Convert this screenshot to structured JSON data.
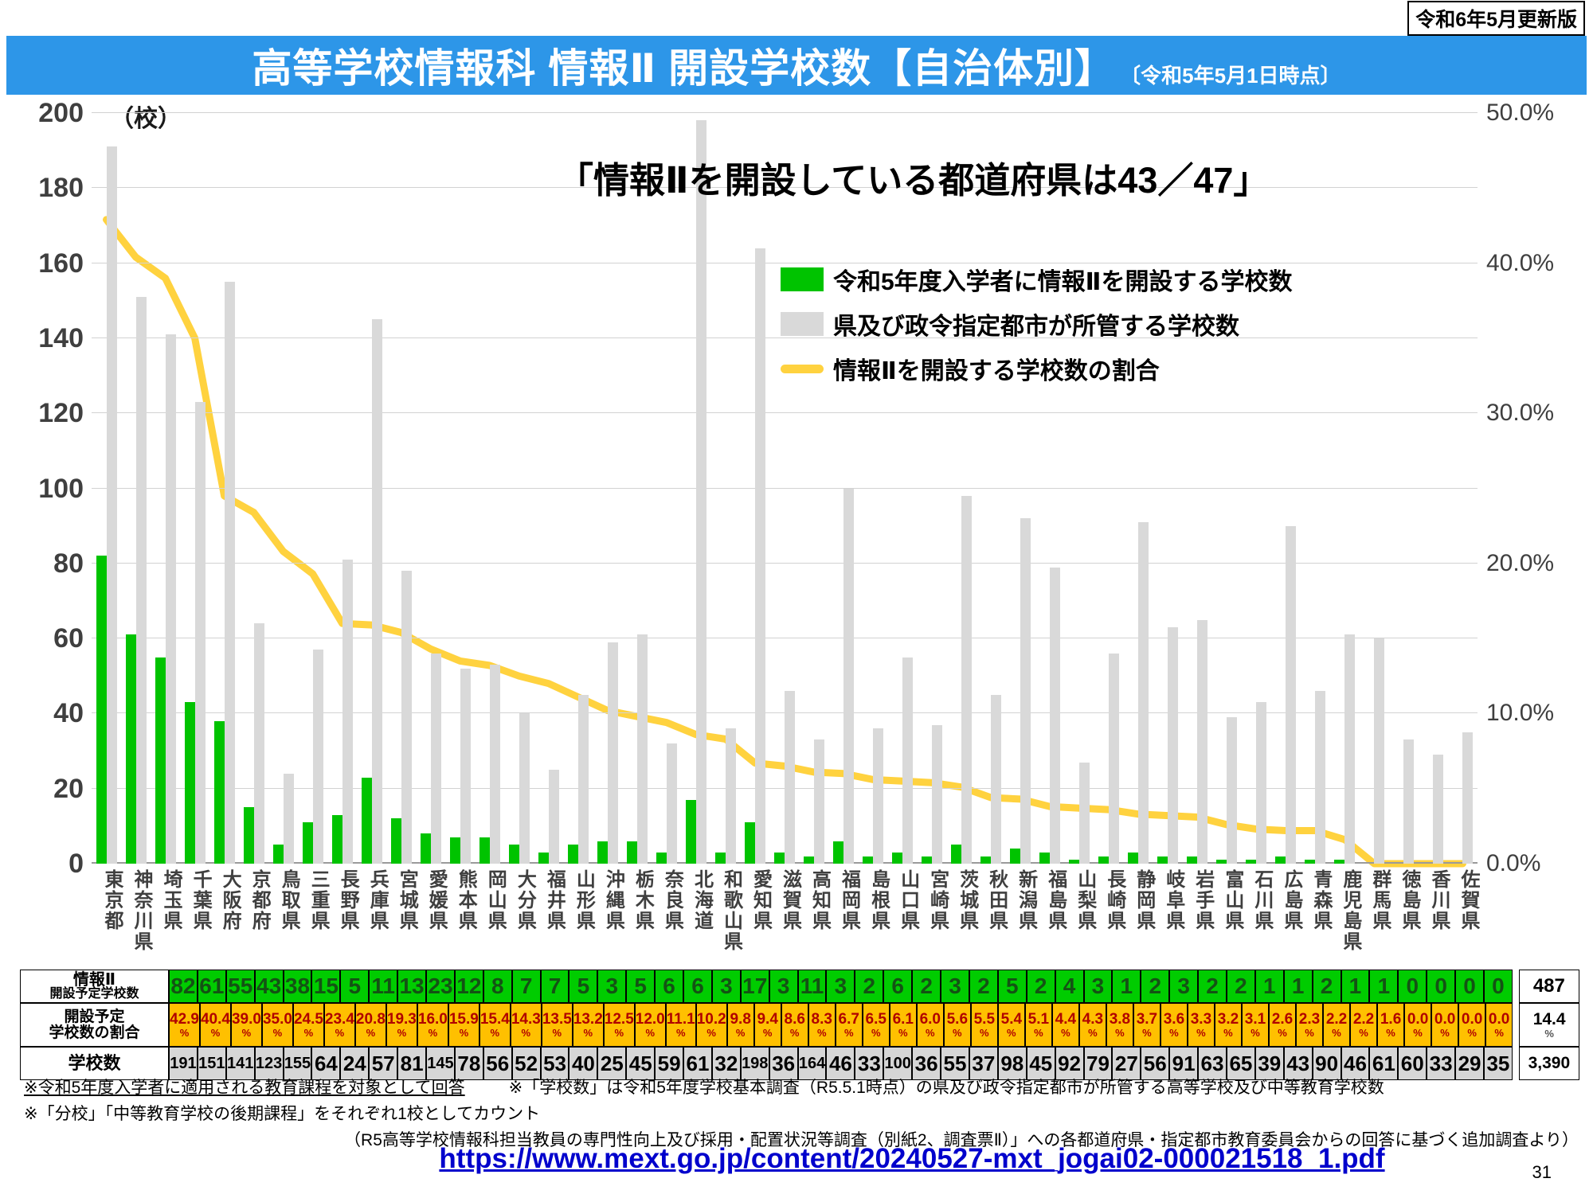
{
  "header": {
    "title": "高等学校情報科 情報Ⅱ 開設学校数【自治体別】",
    "title_suffix": "〔令和5年5月1日時点〕",
    "update_badge": "令和6年5月更新版"
  },
  "annotation": "「情報Ⅱを開設している都道府県は43／47」",
  "legend": [
    {
      "label": "令和5年度入学者に情報Ⅱを開設する学校数",
      "color": "#00C300"
    },
    {
      "label": "県及び政令指定都市が所管する学校数",
      "color": "#D9D9D9"
    },
    {
      "label": "情報Ⅱを開設する学校数の割合",
      "color": "#FFD23F"
    }
  ],
  "axes": {
    "left_unit": "（校）",
    "left_ticks": [
      200,
      180,
      160,
      140,
      120,
      100,
      80,
      60,
      40,
      20,
      0
    ],
    "right_ticks": [
      "50.0%",
      "40.0%",
      "30.0%",
      "20.0%",
      "10.0%",
      "0.0%"
    ],
    "left_max": 200,
    "right_max_pct": 50
  },
  "chart_data": {
    "type": "bar",
    "title": "高等学校情報科 情報Ⅱ 開設学校数【自治体別】",
    "categories": [
      "東京都",
      "神奈川県",
      "埼玉県",
      "千葉県",
      "大阪府",
      "京都府",
      "鳥取県",
      "三重県",
      "長野県",
      "兵庫県",
      "宮城県",
      "愛媛県",
      "熊本県",
      "岡山県",
      "大分県",
      "福井県",
      "山形県",
      "沖縄県",
      "栃木県",
      "奈良県",
      "北海道",
      "和歌山県",
      "愛知県",
      "滋賀県",
      "高知県",
      "福岡県",
      "島根県",
      "山口県",
      "宮崎県",
      "茨城県",
      "秋田県",
      "新潟県",
      "福島県",
      "山梨県",
      "長崎県",
      "静岡県",
      "岐阜県",
      "岩手県",
      "富山県",
      "石川県",
      "広島県",
      "青森県",
      "鹿児島県",
      "群馬県",
      "徳島県",
      "香川県",
      "佐賀県"
    ],
    "series": [
      {
        "name": "令和5年度入学者に情報Ⅱを開設する学校数",
        "type": "bar",
        "color": "#00C300",
        "values": [
          82,
          61,
          55,
          43,
          38,
          15,
          5,
          11,
          13,
          23,
          12,
          8,
          7,
          7,
          5,
          3,
          5,
          6,
          6,
          3,
          17,
          3,
          11,
          3,
          2,
          6,
          2,
          3,
          2,
          5,
          2,
          4,
          3,
          1,
          2,
          3,
          2,
          2,
          1,
          1,
          2,
          1,
          1,
          0,
          0,
          0,
          0
        ]
      },
      {
        "name": "県及び政令指定都市が所管する学校数",
        "type": "bar",
        "color": "#D9D9D9",
        "values": [
          191,
          151,
          141,
          123,
          155,
          64,
          24,
          57,
          81,
          145,
          78,
          56,
          52,
          53,
          40,
          25,
          45,
          59,
          61,
          32,
          198,
          36,
          164,
          46,
          33,
          100,
          36,
          55,
          37,
          98,
          45,
          92,
          79,
          27,
          56,
          91,
          63,
          65,
          39,
          43,
          90,
          46,
          61,
          60,
          33,
          29,
          35
        ]
      },
      {
        "name": "情報Ⅱを開設する学校数の割合",
        "type": "line",
        "color": "#FFD23F",
        "values_pct": [
          "42.9",
          "40.4",
          "39.0",
          "35.0",
          "24.5",
          "23.4",
          "20.8",
          "19.3",
          "16.0",
          "15.9",
          "15.4",
          "14.3",
          "13.5",
          "13.2",
          "12.5",
          "12.0",
          "11.1",
          "10.2",
          "9.8",
          "9.4",
          "8.6",
          "8.3",
          "6.7",
          "6.5",
          "6.1",
          "6.0",
          "5.6",
          "5.5",
          "5.4",
          "5.1",
          "4.4",
          "4.3",
          "3.8",
          "3.7",
          "3.6",
          "3.3",
          "3.2",
          "3.1",
          "2.6",
          "2.3",
          "2.2",
          "2.2",
          "1.6",
          "0.0",
          "0.0",
          "0.0",
          "0.0"
        ]
      }
    ],
    "ylim_left": [
      0,
      200
    ],
    "ylim_right_pct": [
      0,
      50
    ],
    "grid": "horizontal"
  },
  "table": {
    "row_headers": [
      [
        "情報Ⅱ",
        "開設予定学校数"
      ],
      [
        "開設予定",
        "学校数の割合"
      ],
      [
        "学校数"
      ]
    ],
    "totals": {
      "info2": "487",
      "ratio": "14.4",
      "schools": "3,390"
    },
    "percent_symbol": "%"
  },
  "notes": [
    "※令和5年度入学者に適用される教育課程を対象として回答",
    "※「学校数」は令和5年度学校基本調査（R5.5.1時点）の県及び政令指定都市が所管する高等学校及び中等教育学校数",
    "※「分校」「中等教育学校の後期課程」をそれぞれ1校としてカウント",
    "（R5高等学校情報科担当教員の専門性向上及び採用・配置状況等調査（別紙2、調査票Ⅱ）」への各都道府県・指定都市教育委員会からの回答に基づく追加調査より）"
  ],
  "footer": {
    "url": "https://www.mext.go.jp/content/20240527-mxt_jogai02-000021518_1.pdf",
    "page_number": "31"
  }
}
